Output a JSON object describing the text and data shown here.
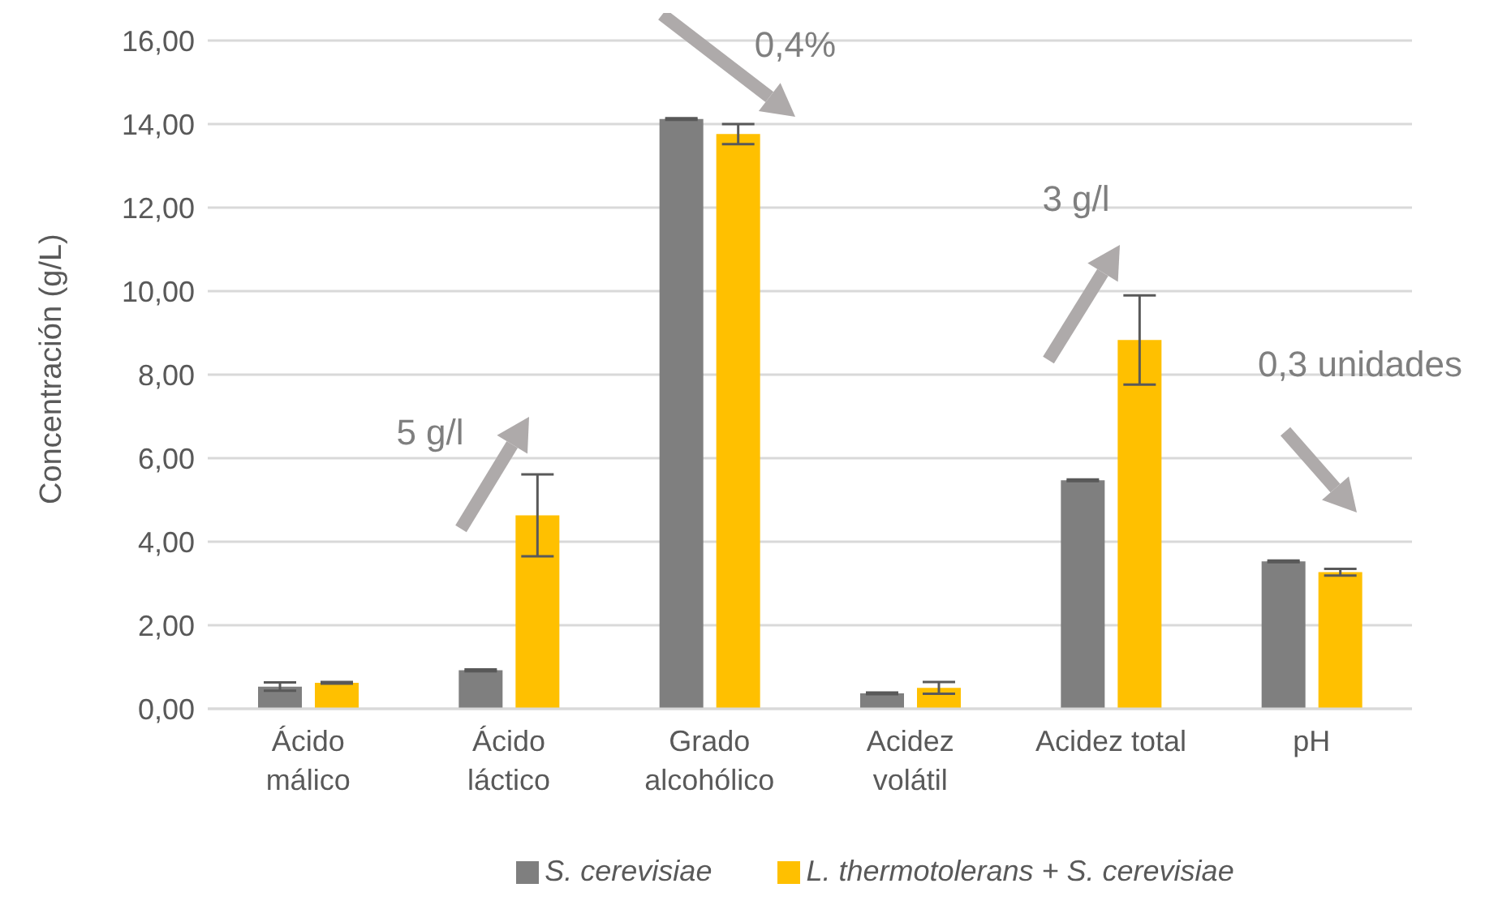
{
  "chart_data": {
    "type": "bar",
    "ylabel": "Concentración (g/L)",
    "categories": [
      "Ácido\nmálico",
      "Ácido\nláctico",
      "Grado\nalcohólico",
      "Acidez\nvolátil",
      "Acidez total",
      "pH"
    ],
    "series": [
      {
        "name": "S. cerevisiae",
        "color": "#7f7f7f",
        "values": [
          0.53,
          0.92,
          14.12,
          0.37,
          5.47,
          3.53
        ],
        "errors": [
          0.1,
          0.02,
          0.02,
          0.02,
          0.02,
          0.02
        ]
      },
      {
        "name": "L. thermotolerans + S. cerevisiae",
        "color": "#ffc000",
        "values": [
          0.62,
          4.63,
          13.76,
          0.5,
          8.83,
          3.27
        ],
        "errors": [
          0.02,
          0.98,
          0.24,
          0.14,
          1.07,
          0.08
        ]
      }
    ],
    "ylim": [
      0,
      16
    ],
    "yticks": [
      {
        "value": 0,
        "label": "0,00"
      },
      {
        "value": 2,
        "label": "2,00"
      },
      {
        "value": 4,
        "label": "4,00"
      },
      {
        "value": 6,
        "label": "6,00"
      },
      {
        "value": 8,
        "label": "8,00"
      },
      {
        "value": 10,
        "label": "10,00"
      },
      {
        "value": 12,
        "label": "12,00"
      },
      {
        "value": 14,
        "label": "14,00"
      },
      {
        "value": 16,
        "label": "16,00"
      }
    ],
    "grid": "y",
    "legend": "bottom",
    "annotations": [
      "5 g/l",
      "0,4%",
      "3 g/l",
      "0,3 unidades"
    ]
  }
}
